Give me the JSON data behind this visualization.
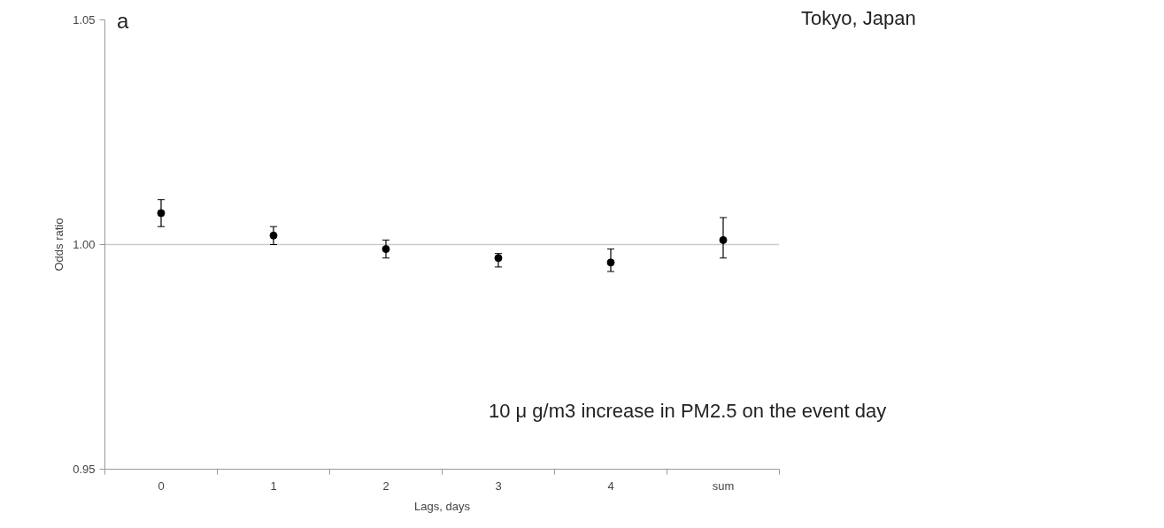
{
  "chart_data": {
    "type": "scatter",
    "xlabel": "Lags, days",
    "ylabel": "Odds ratio",
    "categories": [
      "0",
      "1",
      "2",
      "3",
      "4",
      "sum"
    ],
    "series": [
      {
        "color": "#000000",
        "values": [
          1.007,
          1.002,
          0.999,
          0.997,
          0.996,
          1.001
        ],
        "errors": [
          [
            1.004,
            1.01
          ],
          [
            1.0,
            1.004
          ],
          [
            0.997,
            1.001
          ],
          [
            0.995,
            0.998
          ],
          [
            0.994,
            0.999
          ],
          [
            0.997,
            1.006
          ]
        ]
      }
    ],
    "ylim": [
      0.95,
      1.05
    ],
    "yticks": [
      0.95,
      {
        "value": 1.0,
        "label": "1.00"
      },
      1.05
    ],
    "grid": "y",
    "marker": "circle",
    "legend": false,
    "annotations": [
      "a",
      "Tokyo, Japan",
      "10 μ g/m3 increase in PM2.5 on the event day"
    ]
  }
}
